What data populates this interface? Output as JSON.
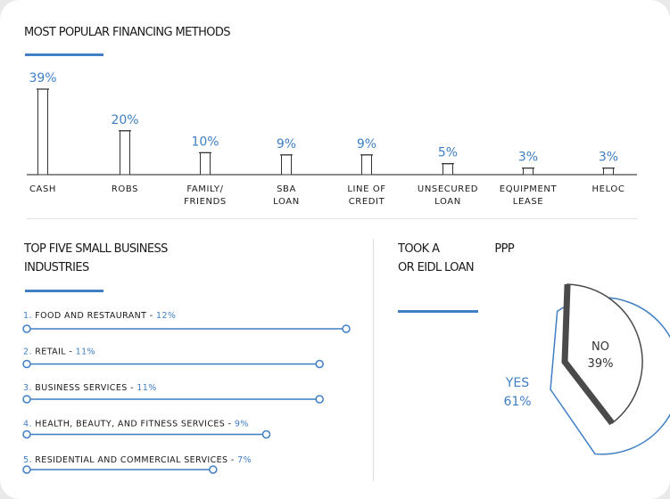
{
  "colors": {
    "accent": "#3f7fc3",
    "text": "#1a1a1a",
    "dark_gray": "#4a4a4a"
  },
  "financing": {
    "title": "MOST POPULAR FINANCING METHODS",
    "chart_data": {
      "type": "bar",
      "categories": [
        [
          "CASH"
        ],
        [
          "ROBS"
        ],
        [
          "FAMILY/",
          "FRIENDS"
        ],
        [
          "SBA",
          "LOAN"
        ],
        [
          "LINE OF",
          "CREDIT"
        ],
        [
          "UNSECURED",
          "LOAN"
        ],
        [
          "EQUIPMENT",
          "LEASE"
        ],
        [
          "HELOC"
        ]
      ],
      "values": [
        39,
        20,
        10,
        9,
        9,
        5,
        3,
        3
      ],
      "value_labels": [
        "39%",
        "20%",
        "10%",
        "9%",
        "9%",
        "5%",
        "3%",
        "3%"
      ],
      "ylim": [
        0,
        39
      ]
    }
  },
  "industries": {
    "title_line1": "TOP FIVE SMALL BUSINESS",
    "title_line2": "INDUSTRIES",
    "chart_data": {
      "type": "bar",
      "items": [
        {
          "num": "1.",
          "name": "FOOD AND RESTAURANT",
          "sep": " - ",
          "pct_label": "12%",
          "value": 12
        },
        {
          "num": "2.",
          "name": "RETAIL",
          "sep": " - ",
          "pct_label": "11%",
          "value": 11
        },
        {
          "num": "3.",
          "name": "BUSINESS SERVICES",
          "sep": " - ",
          "pct_label": "11%",
          "value": 11
        },
        {
          "num": "4.",
          "name": "HEALTH, BEAUTY, AND FITNESS SERVICES",
          "sep": "  - ",
          "pct_label": "9%",
          "value": 9
        },
        {
          "num": "5.",
          "name": "RESIDENTIAL AND COMMERCIAL SERVICES",
          "sep": "  - ",
          "pct_label": "7%",
          "value": 7
        }
      ]
    }
  },
  "ppp": {
    "title_line1_a": "TOOK A",
    "title_line1_b": "PPP",
    "title_line2": "OR EIDL LOAN",
    "chart_data": {
      "type": "pie",
      "slices": [
        {
          "label": "YES",
          "value": 61,
          "value_label": "61%"
        },
        {
          "label": "NO",
          "value": 39,
          "value_label": "39%"
        }
      ]
    }
  }
}
